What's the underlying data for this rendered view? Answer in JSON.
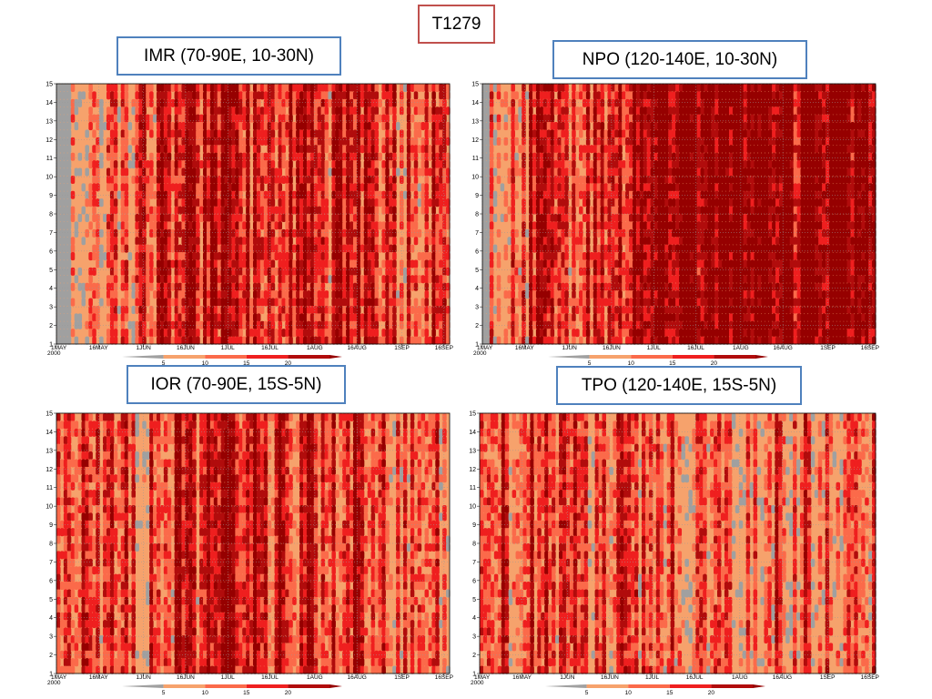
{
  "title": "T1279",
  "colors": {
    "missing": "#a0a0a0",
    "level_1": "#f6a26c",
    "level_2": "#fb6a4a",
    "level_3": "#ef1f1f",
    "level_4": "#b10c0c",
    "level_5": "#960000",
    "grid": "#999999",
    "label_border": "#4f81bd",
    "title_border": "#c0504d"
  },
  "chart_data": [
    {
      "type": "heatmap",
      "label": "IMR (70-90E, 10-30N)",
      "y_ticks": [
        "1",
        "2",
        "3",
        "4",
        "5",
        "6",
        "7",
        "8",
        "9",
        "10",
        "11",
        "12",
        "13",
        "14",
        "15"
      ],
      "x_ticks": [
        "1MAY",
        "16MAY",
        "1JUN",
        "16JUN",
        "1JUL",
        "16JUL",
        "1AUG",
        "16AUG",
        "1SEP",
        "16SEP"
      ],
      "x_year": "2000",
      "colorbar_ticks": [
        "5",
        "10",
        "15",
        "20"
      ],
      "missing_until_day": 5,
      "intensity_profile": [
        0.25,
        0.3,
        0.45,
        0.7,
        0.75,
        0.62,
        0.7,
        0.65,
        0.6,
        0.55,
        0.5
      ]
    },
    {
      "type": "heatmap",
      "label": "NPO (120-140E, 10-30N)",
      "y_ticks": [
        "1",
        "2",
        "3",
        "4",
        "5",
        "6",
        "7",
        "8",
        "9",
        "10",
        "11",
        "12",
        "13",
        "14",
        "15"
      ],
      "x_ticks": [
        "1MAY",
        "16MAY",
        "1JUN",
        "16JUN",
        "1JUL",
        "16JUL",
        "1AUG",
        "16AUG",
        "1SEP",
        "16SEP"
      ],
      "x_year": "2000",
      "colorbar_ticks": [
        "5",
        "10",
        "15",
        "20"
      ],
      "missing_until_day": 2,
      "intensity_profile": [
        0.35,
        0.55,
        0.6,
        0.62,
        0.85,
        0.93,
        0.93,
        0.93,
        0.92,
        0.92,
        0.92
      ]
    },
    {
      "type": "heatmap",
      "label": "IOR (70-90E, 15S-5N)",
      "y_ticks": [
        "1",
        "2",
        "3",
        "4",
        "5",
        "6",
        "7",
        "8",
        "9",
        "10",
        "11",
        "12",
        "13",
        "14",
        "15"
      ],
      "x_ticks": [
        "1MAY",
        "16MAY",
        "1JUN",
        "16JUN",
        "1JUL",
        "16JUL",
        "1AUG",
        "16AUG",
        "1SEP",
        "16SEP"
      ],
      "x_year": "2000",
      "colorbar_ticks": [
        "5",
        "10",
        "15",
        "20"
      ],
      "missing_until_day": 0,
      "intensity_profile": [
        0.55,
        0.45,
        0.4,
        0.6,
        0.62,
        0.68,
        0.58,
        0.62,
        0.55,
        0.45,
        0.4
      ]
    },
    {
      "type": "heatmap",
      "label": "TPO (120-140E, 15S-5N)",
      "y_ticks": [
        "1",
        "2",
        "3",
        "4",
        "5",
        "6",
        "7",
        "8",
        "9",
        "10",
        "11",
        "12",
        "13",
        "14",
        "15"
      ],
      "x_ticks": [
        "1MAY",
        "16MAY",
        "1JUN",
        "16JUN",
        "1JUL",
        "16JUL",
        "1AUG",
        "16AUG",
        "1SEP",
        "16SEP"
      ],
      "x_year": "2000",
      "colorbar_ticks": [
        "5",
        "10",
        "15",
        "20"
      ],
      "missing_until_day": 0,
      "intensity_profile": [
        0.45,
        0.55,
        0.6,
        0.5,
        0.45,
        0.4,
        0.4,
        0.42,
        0.38,
        0.36,
        0.36
      ]
    }
  ]
}
